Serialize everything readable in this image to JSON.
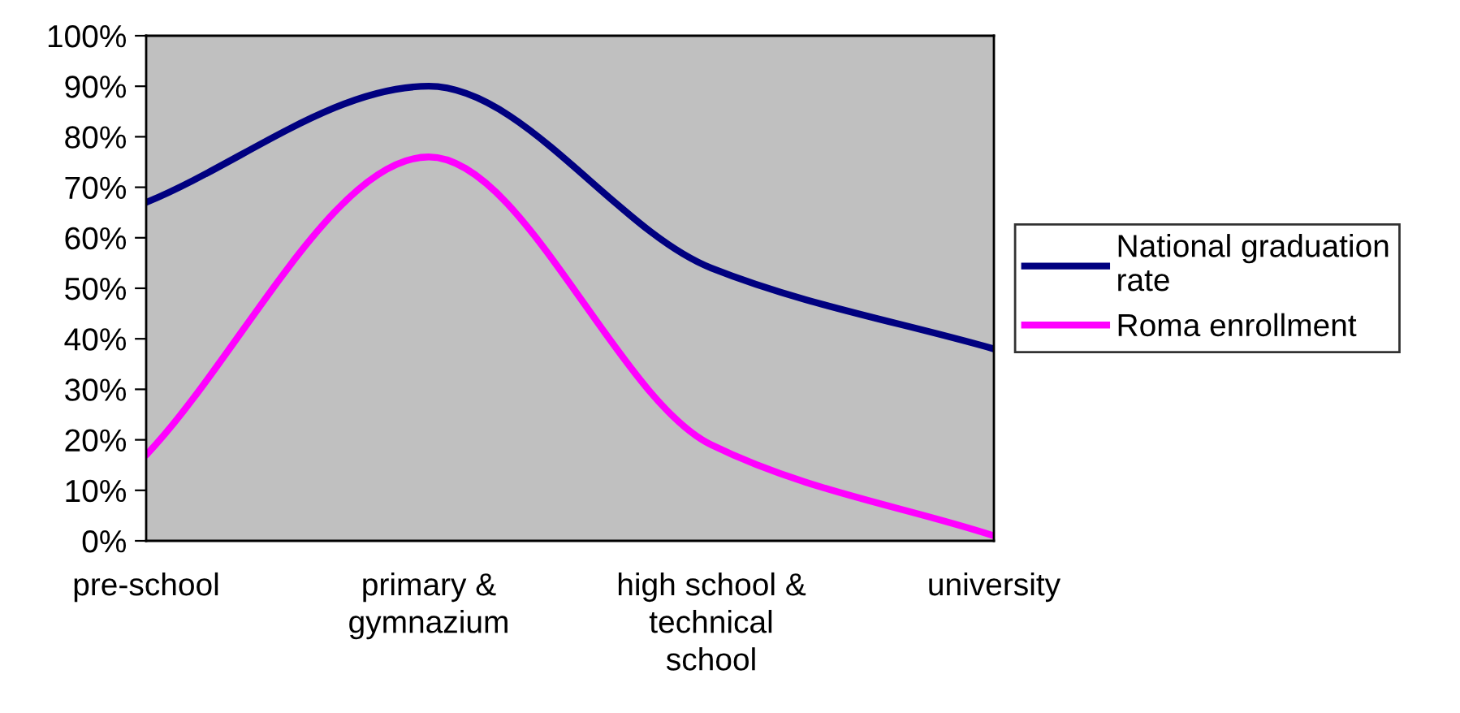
{
  "chart_data": {
    "type": "line",
    "categories": [
      "pre-school",
      "primary &\ngymnazium",
      "high school &\ntechnical\nschool",
      "university"
    ],
    "series": [
      {
        "name": "National graduation\nrate",
        "color": "#000080",
        "values": [
          67,
          90,
          54,
          38
        ]
      },
      {
        "name": "Roma enrollment",
        "color": "#ff00ff",
        "values": [
          17,
          76,
          19,
          1
        ]
      }
    ],
    "ylim": [
      0,
      100
    ],
    "yticks": [
      {
        "value": 0,
        "label": "0%"
      },
      {
        "value": 10,
        "label": "10%"
      },
      {
        "value": 20,
        "label": "20%"
      },
      {
        "value": 30,
        "label": "30%"
      },
      {
        "value": 40,
        "label": "40%"
      },
      {
        "value": 50,
        "label": "50%"
      },
      {
        "value": 60,
        "label": "60%"
      },
      {
        "value": 70,
        "label": "70%"
      },
      {
        "value": 80,
        "label": "80%"
      },
      {
        "value": 90,
        "label": "90%"
      },
      {
        "value": 100,
        "label": "100%"
      }
    ],
    "legend": "right",
    "marker": "none",
    "line_style": "solid"
  }
}
